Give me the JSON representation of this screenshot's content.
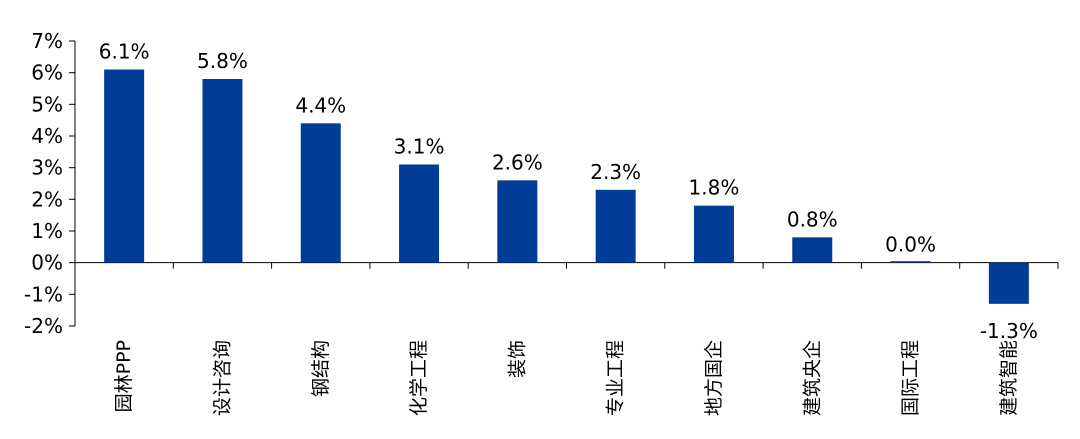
{
  "chart_data": {
    "type": "bar",
    "title": "",
    "xlabel": "",
    "ylabel": "",
    "categories": [
      "园林PPP",
      "设计咨询",
      "钢结构",
      "化学工程",
      "装饰",
      "专业工程",
      "地方国企",
      "建筑央企",
      "国际工程",
      "建筑智能"
    ],
    "values": [
      6.1,
      5.8,
      4.4,
      3.1,
      2.6,
      2.3,
      1.8,
      0.8,
      0.0,
      -1.3
    ],
    "data_labels": [
      "6.1%",
      "5.8%",
      "4.4%",
      "3.1%",
      "2.6%",
      "2.3%",
      "1.8%",
      "0.8%",
      "0.0%",
      "-1.3%"
    ],
    "ylim": [
      -2,
      7
    ],
    "yticks": [
      7,
      6,
      5,
      4,
      3,
      2,
      1,
      0,
      -1,
      -2
    ],
    "ytick_labels": [
      "7%",
      "6%",
      "5%",
      "4%",
      "3%",
      "2%",
      "1%",
      "0%",
      "-1%",
      "-2%"
    ],
    "bar_color": "#003D99",
    "grid": false,
    "legend": "none"
  }
}
